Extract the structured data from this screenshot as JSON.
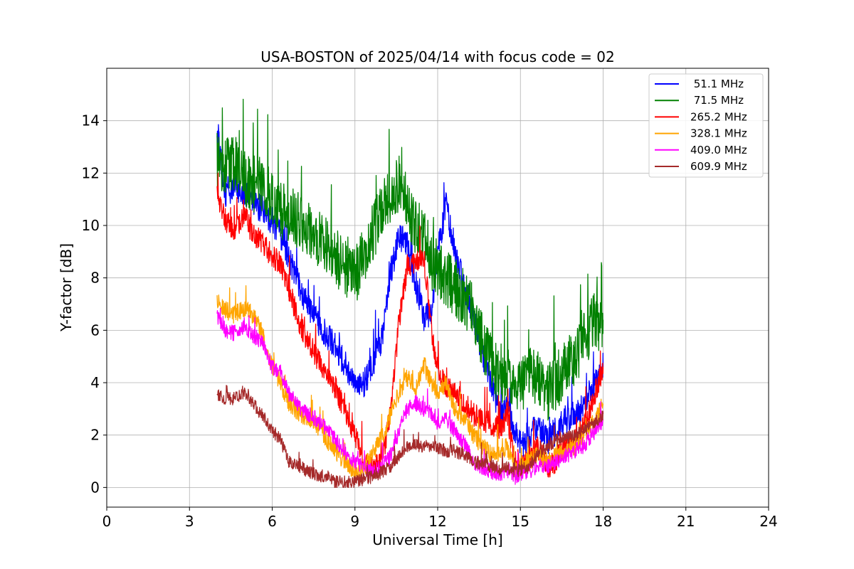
{
  "chart_data": {
    "type": "line",
    "title": "USA-BOSTON of 2025/04/14 with focus code = 02",
    "xlabel": "Universal Time [h]",
    "ylabel": "Y-factor [dB]",
    "xlim": [
      0,
      24
    ],
    "ylim": [
      -0.75,
      16
    ],
    "xticks": [
      0,
      3,
      6,
      9,
      12,
      15,
      18,
      21,
      24
    ],
    "yticks": [
      0,
      2,
      4,
      6,
      8,
      10,
      12,
      14
    ],
    "grid": true,
    "legend_position": "top-right",
    "series": [
      {
        "name": " 51.1 MHz",
        "color": "#0000ff",
        "x": [
          4.0,
          4.3,
          4.6,
          5.0,
          5.3,
          5.6,
          6.0,
          6.3,
          6.6,
          7.0,
          7.3,
          7.6,
          8.0,
          8.3,
          8.6,
          9.0,
          9.3,
          9.6,
          10.0,
          10.3,
          10.6,
          10.9,
          11.2,
          11.5,
          11.8,
          12.0,
          12.3,
          12.6,
          13.0,
          13.3,
          13.6,
          14.0,
          14.3,
          14.5,
          14.8,
          15.0,
          15.3,
          15.6,
          16.0,
          16.3,
          16.6,
          17.0,
          17.3,
          17.6,
          18.0
        ],
        "y": [
          13.8,
          11.2,
          11.5,
          11.3,
          11.0,
          10.6,
          10.2,
          9.6,
          8.8,
          7.6,
          7.0,
          6.4,
          5.8,
          5.4,
          4.8,
          4.0,
          3.9,
          4.6,
          5.8,
          8.2,
          9.6,
          9.2,
          7.8,
          6.4,
          6.8,
          9.0,
          10.8,
          9.2,
          7.5,
          6.6,
          5.2,
          3.8,
          2.6,
          3.2,
          2.2,
          1.6,
          1.8,
          2.4,
          1.8,
          2.2,
          2.6,
          2.8,
          3.2,
          3.8,
          4.6
        ],
        "noise": 0.55
      },
      {
        "name": " 71.5 MHz",
        "color": "#008000",
        "x": [
          4.0,
          4.3,
          4.6,
          5.0,
          5.3,
          5.6,
          6.0,
          6.3,
          6.6,
          7.0,
          7.3,
          7.6,
          8.0,
          8.3,
          8.6,
          9.0,
          9.3,
          9.6,
          10.0,
          10.3,
          10.6,
          10.9,
          11.2,
          11.5,
          11.8,
          12.0,
          12.3,
          12.6,
          13.0,
          13.3,
          13.6,
          14.0,
          14.3,
          14.5,
          14.8,
          15.0,
          15.3,
          15.6,
          16.0,
          16.3,
          16.6,
          17.0,
          17.3,
          17.6,
          18.0
        ],
        "y": [
          12.5,
          12.2,
          12.4,
          11.8,
          11.6,
          11.5,
          11.0,
          10.6,
          10.4,
          10.2,
          9.8,
          9.6,
          9.2,
          8.8,
          8.4,
          8.0,
          8.8,
          9.6,
          10.6,
          11.2,
          11.6,
          10.8,
          10.0,
          9.6,
          8.6,
          8.4,
          8.0,
          7.6,
          7.2,
          6.6,
          5.6,
          4.8,
          3.8,
          4.4,
          4.2,
          3.8,
          4.4,
          4.2,
          3.6,
          4.0,
          4.6,
          5.0,
          5.6,
          6.2,
          6.4
        ],
        "noise": 1.1
      },
      {
        "name": "265.2 MHz",
        "color": "#ff0000",
        "x": [
          4.0,
          4.3,
          4.6,
          5.0,
          5.3,
          5.6,
          6.0,
          6.3,
          6.6,
          7.0,
          7.3,
          7.6,
          8.0,
          8.3,
          8.6,
          9.0,
          9.3,
          9.6,
          10.0,
          10.3,
          10.6,
          10.9,
          11.2,
          11.5,
          11.8,
          12.0,
          12.3,
          12.6,
          13.0,
          13.3,
          13.6,
          14.0,
          14.3,
          14.5,
          14.8,
          15.0,
          15.3,
          15.6,
          16.0,
          16.3,
          16.6,
          17.0,
          17.3,
          17.6,
          18.0
        ],
        "y": [
          11.2,
          10.2,
          9.8,
          10.4,
          9.6,
          9.4,
          8.8,
          8.6,
          7.6,
          6.2,
          5.6,
          5.0,
          4.2,
          3.8,
          3.0,
          2.0,
          1.0,
          0.8,
          1.2,
          2.8,
          6.4,
          8.4,
          8.6,
          8.8,
          5.8,
          4.6,
          3.8,
          3.6,
          3.2,
          2.8,
          2.6,
          2.4,
          2.2,
          2.8,
          1.0,
          0.8,
          1.0,
          1.6,
          0.8,
          1.0,
          1.6,
          1.8,
          2.4,
          3.2,
          4.6
        ],
        "noise": 0.45
      },
      {
        "name": "328.1 MHz",
        "color": "#ffa500",
        "x": [
          4.0,
          4.3,
          4.6,
          5.0,
          5.3,
          5.6,
          6.0,
          6.3,
          6.6,
          7.0,
          7.3,
          7.6,
          8.0,
          8.3,
          8.6,
          9.0,
          9.3,
          9.6,
          10.0,
          10.3,
          10.6,
          10.9,
          11.2,
          11.5,
          11.8,
          12.0,
          12.3,
          12.6,
          13.0,
          13.3,
          13.6,
          14.0,
          14.3,
          14.5,
          14.8,
          15.0,
          15.3,
          15.6,
          16.0,
          16.3,
          16.6,
          17.0,
          17.3,
          17.6,
          18.0
        ],
        "y": [
          7.2,
          6.8,
          6.6,
          6.8,
          6.6,
          6.0,
          4.6,
          4.0,
          3.2,
          2.8,
          2.6,
          2.4,
          1.8,
          1.4,
          1.0,
          0.6,
          0.7,
          1.2,
          2.0,
          2.8,
          3.6,
          4.2,
          3.8,
          4.6,
          4.0,
          3.6,
          4.0,
          3.0,
          2.6,
          2.0,
          1.6,
          1.2,
          1.2,
          1.6,
          0.8,
          0.8,
          1.0,
          1.2,
          1.0,
          1.2,
          1.4,
          1.6,
          2.0,
          2.4,
          3.2
        ],
        "noise": 0.35
      },
      {
        "name": "409.0 MHz",
        "color": "#ff00ff",
        "x": [
          4.0,
          4.3,
          4.6,
          5.0,
          5.3,
          5.6,
          6.0,
          6.3,
          6.6,
          7.0,
          7.3,
          7.6,
          8.0,
          8.3,
          8.6,
          9.0,
          9.3,
          9.6,
          10.0,
          10.3,
          10.6,
          10.9,
          11.2,
          11.5,
          11.8,
          12.0,
          12.3,
          12.6,
          13.0,
          13.3,
          13.6,
          14.0,
          14.3,
          14.5,
          14.8,
          15.0,
          15.3,
          15.6,
          16.0,
          16.3,
          16.6,
          17.0,
          17.3,
          17.6,
          18.0
        ],
        "y": [
          6.6,
          6.0,
          5.9,
          6.2,
          5.8,
          5.6,
          4.6,
          4.4,
          3.6,
          3.0,
          2.8,
          2.6,
          2.2,
          1.8,
          1.4,
          1.0,
          0.8,
          0.6,
          0.8,
          1.2,
          2.2,
          3.0,
          3.2,
          3.0,
          2.8,
          2.4,
          2.6,
          2.2,
          1.6,
          1.0,
          0.8,
          0.6,
          0.5,
          0.7,
          0.4,
          0.5,
          0.6,
          0.8,
          0.8,
          1.0,
          1.2,
          1.4,
          1.6,
          2.0,
          2.6
        ],
        "noise": 0.3
      },
      {
        "name": "609.9 MHz",
        "color": "#a52a2a",
        "x": [
          4.0,
          4.3,
          4.6,
          5.0,
          5.3,
          5.6,
          6.0,
          6.3,
          6.6,
          7.0,
          7.3,
          7.6,
          8.0,
          8.3,
          8.6,
          9.0,
          9.3,
          9.6,
          10.0,
          10.3,
          10.6,
          10.9,
          11.2,
          11.5,
          11.8,
          12.0,
          12.3,
          12.6,
          13.0,
          13.3,
          13.6,
          14.0,
          14.3,
          14.5,
          14.8,
          15.0,
          15.3,
          15.6,
          16.0,
          16.3,
          16.6,
          17.0,
          17.3,
          17.6,
          18.0
        ],
        "y": [
          3.6,
          3.4,
          3.4,
          3.6,
          3.2,
          2.8,
          2.2,
          1.8,
          1.0,
          0.8,
          0.6,
          0.5,
          0.4,
          0.2,
          0.2,
          0.2,
          0.3,
          0.4,
          0.6,
          0.8,
          1.2,
          1.6,
          1.6,
          1.6,
          1.6,
          1.5,
          1.4,
          1.4,
          1.2,
          1.0,
          0.9,
          0.8,
          0.7,
          0.8,
          0.6,
          0.7,
          0.8,
          1.2,
          1.6,
          1.8,
          1.9,
          2.0,
          2.2,
          2.4,
          2.8
        ],
        "noise": 0.25
      }
    ]
  }
}
